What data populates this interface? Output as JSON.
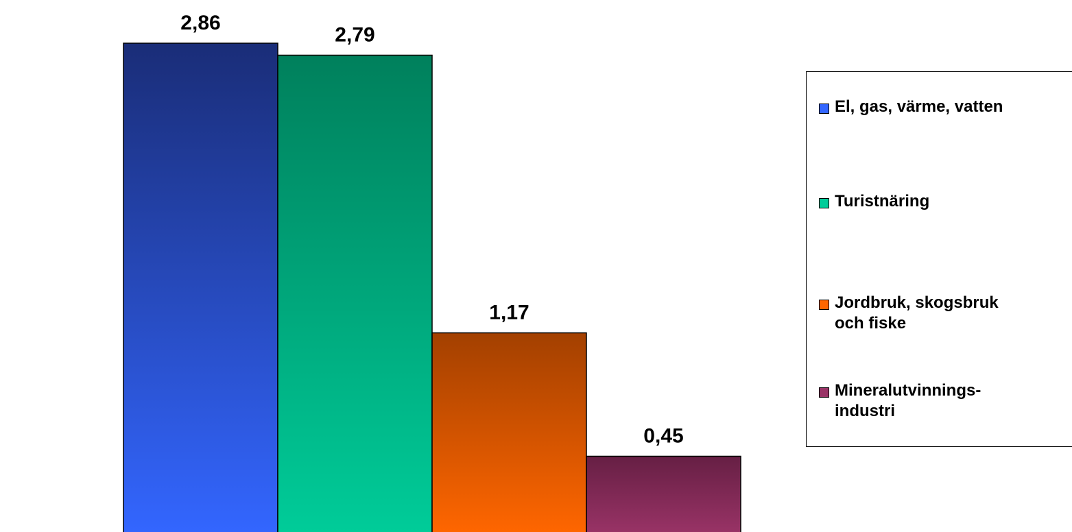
{
  "chart_data": {
    "type": "bar",
    "categories": [
      "El, gas, värme, vatten",
      "Turistnäring",
      "Jordbruk, skogsbruk och fiske",
      "Mineralutvinningsindustri"
    ],
    "values": [
      2.86,
      2.79,
      1.17,
      0.45
    ],
    "data_labels": [
      "2,86",
      "2,79",
      "1,17",
      "0,45"
    ],
    "ylim": [
      0,
      3.0
    ],
    "grid": false,
    "legend_position": "right",
    "colors": [
      {
        "top": "#1a2d78",
        "bottom": "#3366ff"
      },
      {
        "top": "#00805c",
        "bottom": "#00cc99"
      },
      {
        "top": "#a34000",
        "bottom": "#ff6600"
      },
      {
        "top": "#661f44",
        "bottom": "#993366"
      }
    ]
  },
  "legend": {
    "items": [
      {
        "lines": [
          "El, gas, värme, vatten"
        ],
        "color": "#3366ff"
      },
      {
        "lines": [
          "Turistnäring"
        ],
        "color": "#00cc99"
      },
      {
        "lines": [
          "Jordbruk, skogsbruk",
          "och fiske"
        ],
        "color": "#ff6600"
      },
      {
        "lines": [
          "Mineralutvinnings-",
          "industri"
        ],
        "color": "#993366"
      }
    ]
  }
}
